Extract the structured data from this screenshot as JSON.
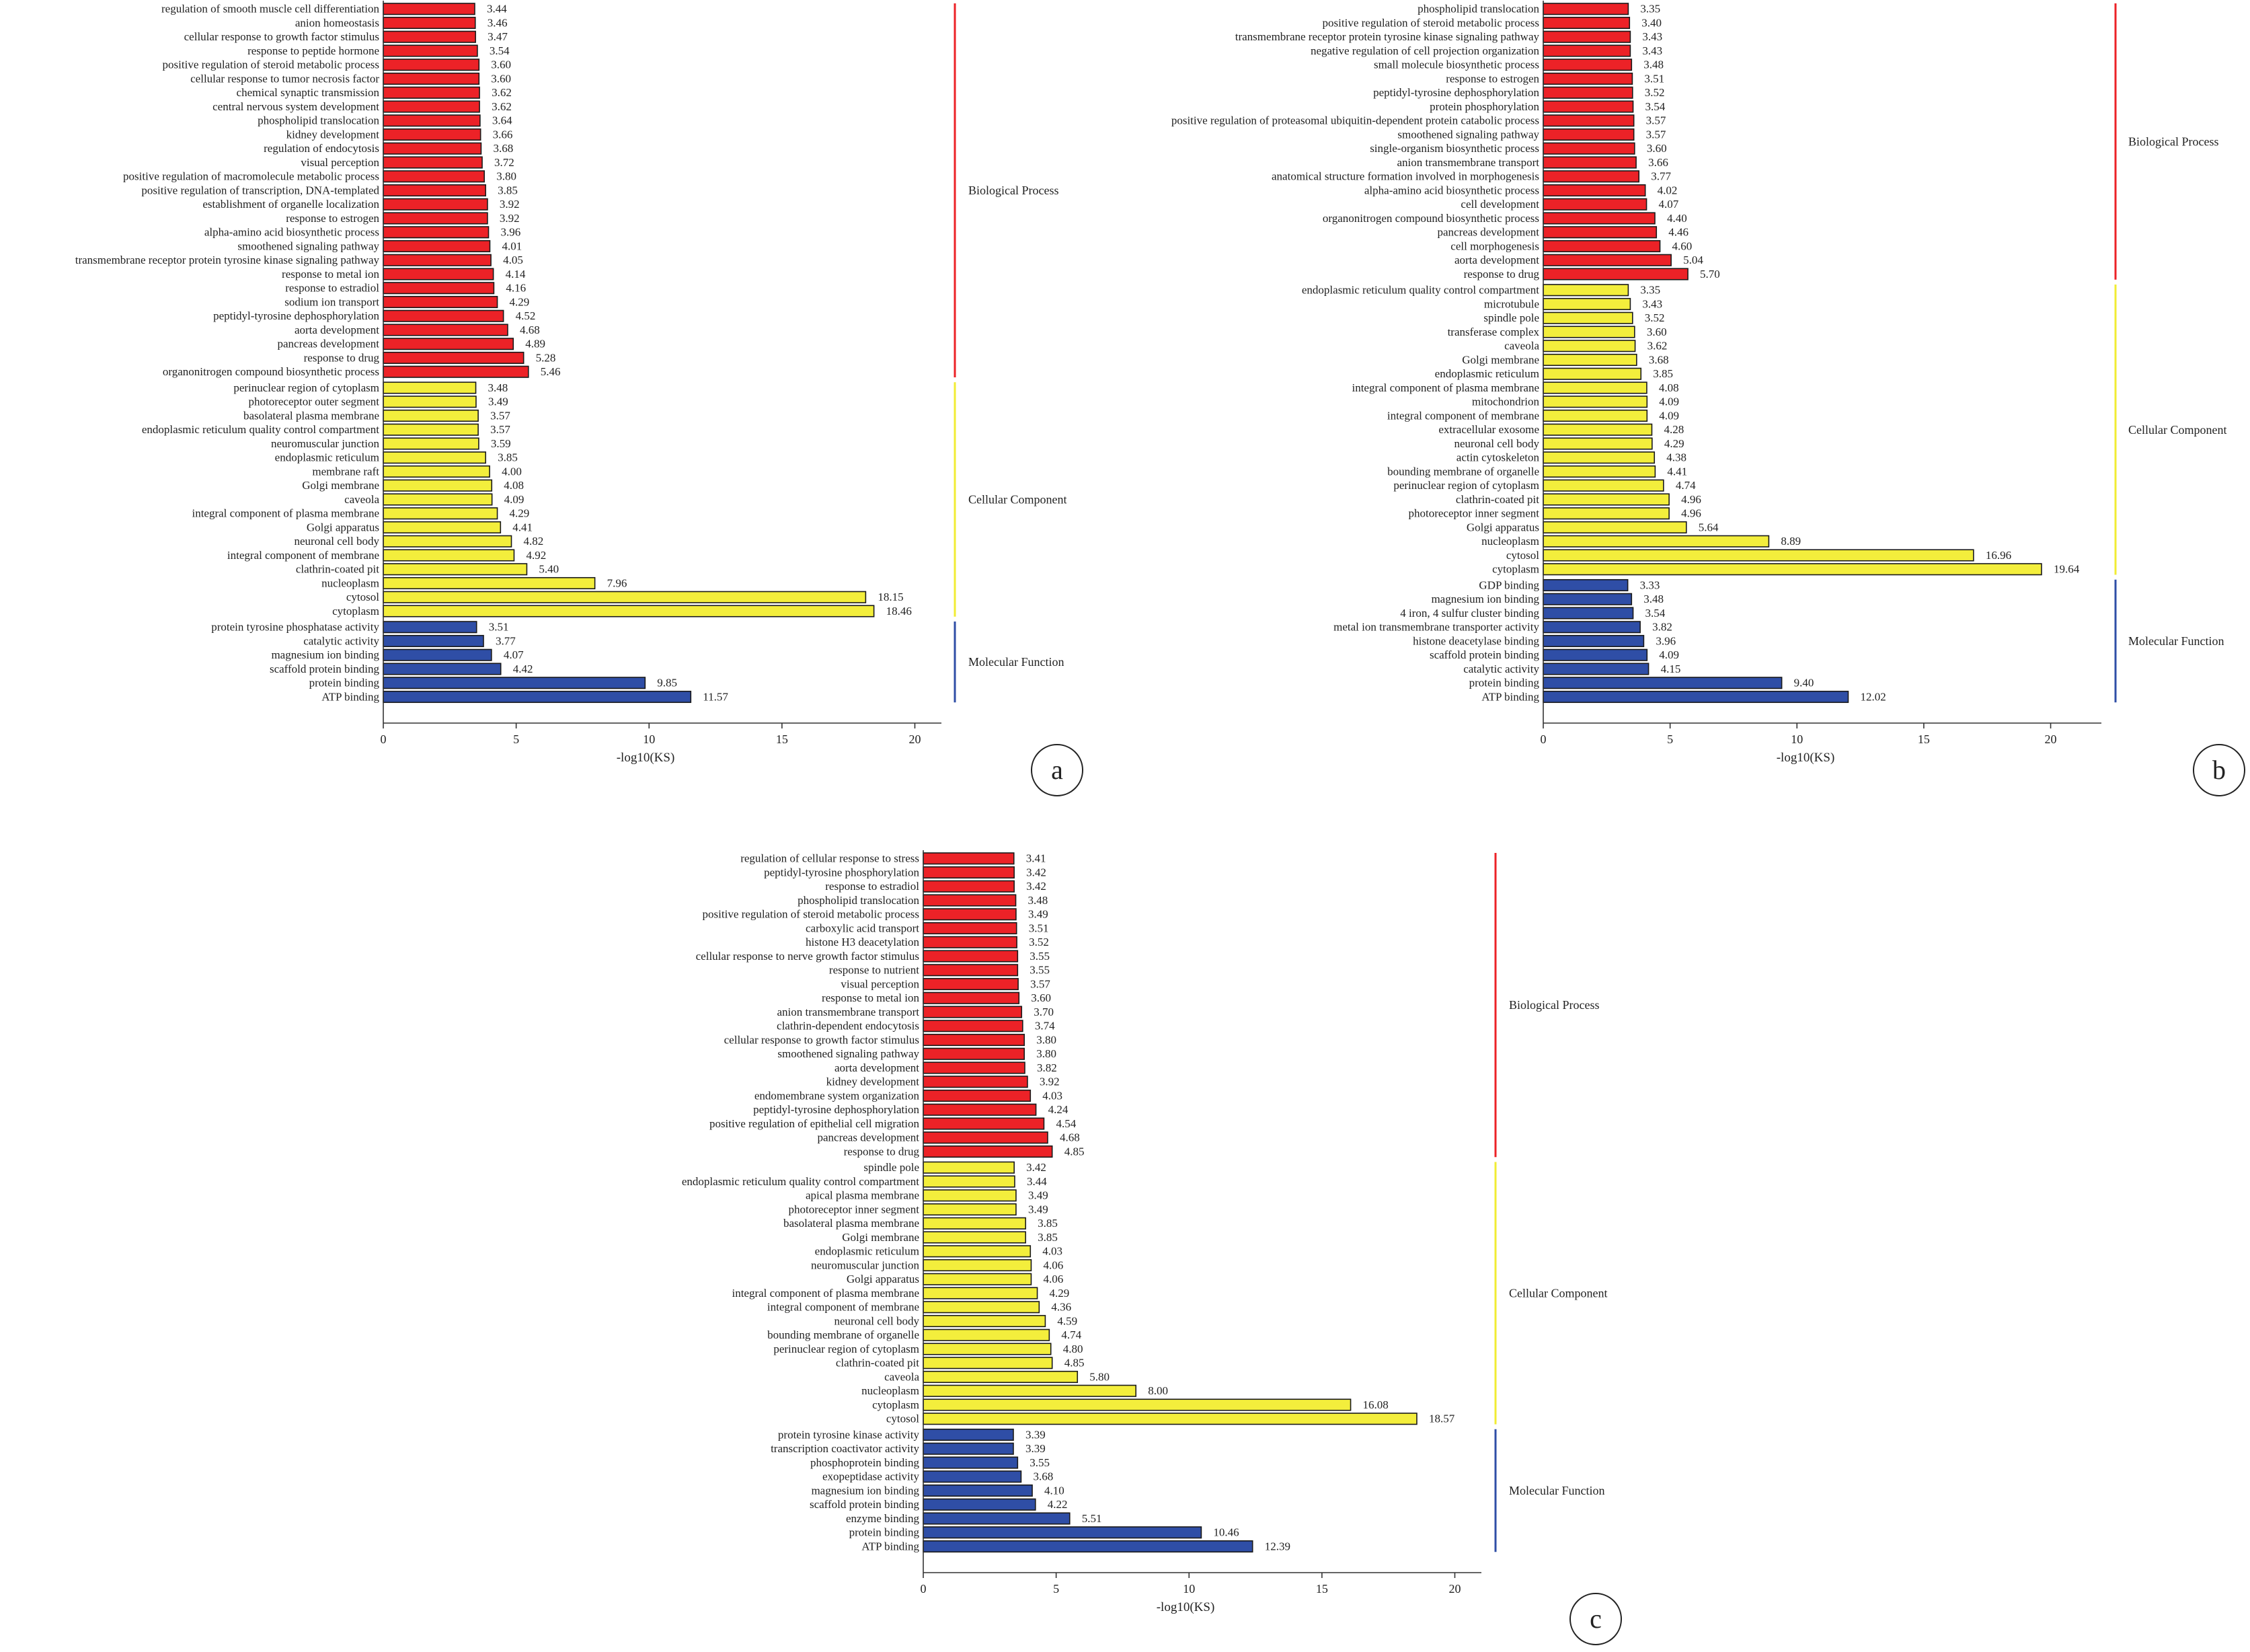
{
  "colors": {
    "bp": "#ec2227",
    "cc": "#f3ee3c",
    "mf": "#2f4ea6",
    "bar_stroke": "#1a1a1a",
    "axis": "#333333"
  },
  "chart_data": [
    {
      "type": "bar",
      "orientation": "horizontal",
      "panel_label": "a",
      "xlabel": "-log10(KS)",
      "xlim": [
        0,
        21
      ],
      "xticks": [
        0,
        5,
        10,
        15,
        20
      ],
      "groups": [
        {
          "name": "Biological Process",
          "color_key": "bp",
          "categories": [
            "regulation of smooth muscle cell differentiation",
            "anion homeostasis",
            "cellular response to growth factor stimulus",
            "response to peptide hormone",
            "positive regulation of steroid metabolic process",
            "cellular response to tumor necrosis factor",
            "chemical synaptic transmission",
            "central nervous system development",
            "phospholipid translocation",
            "kidney development",
            "regulation of endocytosis",
            "visual perception",
            "positive regulation of macromolecule metabolic process",
            "positive regulation of transcription, DNA-templated",
            "establishment of organelle localization",
            "response to estrogen",
            "alpha-amino acid biosynthetic process",
            "smoothened signaling pathway",
            "transmembrane receptor protein tyrosine kinase signaling pathway",
            "response to metal ion",
            "response to estradiol",
            "sodium ion transport",
            "peptidyl-tyrosine dephosphorylation",
            "aorta development",
            "pancreas development",
            "response to drug",
            "organonitrogen compound biosynthetic process"
          ],
          "values": [
            3.44,
            3.46,
            3.47,
            3.54,
            3.6,
            3.6,
            3.62,
            3.62,
            3.64,
            3.66,
            3.68,
            3.72,
            3.8,
            3.85,
            3.92,
            3.92,
            3.96,
            4.01,
            4.05,
            4.14,
            4.16,
            4.29,
            4.52,
            4.68,
            4.89,
            5.28,
            5.46
          ],
          "labels": [
            "3.44",
            "3.46",
            "3.47",
            "3.54",
            "3.60",
            "3.60",
            "3.62",
            "3.62",
            "3.64",
            "3.66",
            "3.68",
            "3.72",
            "3.80",
            "3.85",
            "3.92",
            "3.92",
            "3.96",
            "4.01",
            "4.05",
            "4.14",
            "4.16",
            "4.29",
            "4.52",
            "4.68",
            "4.89",
            "5.28",
            "5.46"
          ]
        },
        {
          "name": "Cellular Component",
          "color_key": "cc",
          "categories": [
            "perinuclear region of cytoplasm",
            "photoreceptor outer segment",
            "basolateral plasma membrane",
            "endoplasmic reticulum quality control compartment",
            "neuromuscular junction",
            "endoplasmic reticulum",
            "membrane raft",
            "Golgi membrane",
            "caveola",
            "integral component of plasma membrane",
            "Golgi apparatus",
            "neuronal cell body",
            "integral component of membrane",
            "clathrin-coated pit",
            "nucleoplasm",
            "cytosol",
            "cytoplasm"
          ],
          "values": [
            3.48,
            3.49,
            3.57,
            3.57,
            3.59,
            3.85,
            4.0,
            4.08,
            4.09,
            4.29,
            4.41,
            4.82,
            4.92,
            5.4,
            7.96,
            18.15,
            18.46
          ],
          "labels": [
            "3.48",
            "3.49",
            "3.57",
            "3.57",
            "3.59",
            "3.85",
            "4.00",
            "4.08",
            "4.09",
            "4.29",
            "4.41",
            "4.82",
            "4.92",
            "5.40",
            "7.96",
            "18.15",
            "18.46"
          ]
        },
        {
          "name": "Molecular Function",
          "color_key": "mf",
          "categories": [
            "protein tyrosine phosphatase activity",
            "catalytic activity",
            "magnesium ion binding",
            "scaffold protein binding",
            "protein binding",
            "ATP binding"
          ],
          "values": [
            3.51,
            3.77,
            4.07,
            4.42,
            9.85,
            11.57
          ],
          "labels": [
            "3.51",
            "3.77",
            "4.07",
            "4.42",
            "9.85",
            "11.57"
          ]
        }
      ]
    },
    {
      "type": "bar",
      "orientation": "horizontal",
      "panel_label": "b",
      "xlabel": "-log10(KS)",
      "xlim": [
        0,
        22
      ],
      "xticks": [
        0,
        5,
        10,
        15,
        20
      ],
      "groups": [
        {
          "name": "Biological Process",
          "color_key": "bp",
          "categories": [
            "phospholipid translocation",
            "positive regulation of steroid metabolic process",
            "transmembrane receptor protein tyrosine kinase signaling pathway",
            "negative regulation of cell projection organization",
            "small molecule biosynthetic process",
            "response to estrogen",
            "peptidyl-tyrosine dephosphorylation",
            "protein phosphorylation",
            "positive regulation of proteasomal ubiquitin-dependent protein catabolic process",
            "smoothened signaling pathway",
            "single-organism biosynthetic process",
            "anion transmembrane transport",
            "anatomical structure formation involved in morphogenesis",
            "alpha-amino acid biosynthetic process",
            "cell development",
            "organonitrogen compound biosynthetic process",
            "pancreas development",
            "cell morphogenesis",
            "aorta development",
            "response to drug"
          ],
          "values": [
            3.35,
            3.4,
            3.43,
            3.43,
            3.48,
            3.51,
            3.52,
            3.54,
            3.57,
            3.57,
            3.6,
            3.66,
            3.77,
            4.02,
            4.07,
            4.4,
            4.46,
            4.6,
            5.04,
            5.7
          ],
          "labels": [
            "3.35",
            "3.40",
            "3.43",
            "3.43",
            "3.48",
            "3.51",
            "3.52",
            "3.54",
            "3.57",
            "3.57",
            "3.60",
            "3.66",
            "3.77",
            "4.02",
            "4.07",
            "4.40",
            "4.46",
            "4.60",
            "5.04",
            "5.70"
          ]
        },
        {
          "name": "Cellular Component",
          "color_key": "cc",
          "categories": [
            "endoplasmic reticulum quality control compartment",
            "microtubule",
            "spindle pole",
            "transferase complex",
            "caveola",
            "Golgi membrane",
            "endoplasmic reticulum",
            "integral component of plasma membrane",
            "mitochondrion",
            "integral component of membrane",
            "extracellular exosome",
            "neuronal cell body",
            "actin cytoskeleton",
            "bounding membrane of organelle",
            "perinuclear region of cytoplasm",
            "clathrin-coated pit",
            "photoreceptor inner segment",
            "Golgi apparatus",
            "nucleoplasm",
            "cytosol",
            "cytoplasm"
          ],
          "values": [
            3.35,
            3.43,
            3.52,
            3.6,
            3.62,
            3.68,
            3.85,
            4.08,
            4.09,
            4.09,
            4.28,
            4.29,
            4.38,
            4.41,
            4.74,
            4.96,
            4.96,
            5.64,
            8.89,
            16.96,
            19.64
          ],
          "labels": [
            "3.35",
            "3.43",
            "3.52",
            "3.60",
            "3.62",
            "3.68",
            "3.85",
            "4.08",
            "4.09",
            "4.09",
            "4.28",
            "4.29",
            "4.38",
            "4.41",
            "4.74",
            "4.96",
            "4.96",
            "5.64",
            "8.89",
            "16.96",
            "19.64"
          ]
        },
        {
          "name": "Molecular Function",
          "color_key": "mf",
          "categories": [
            "GDP binding",
            "magnesium ion binding",
            "4 iron, 4 sulfur cluster binding",
            "metal ion transmembrane transporter activity",
            "histone deacetylase binding",
            "scaffold protein binding",
            "catalytic activity",
            "protein binding",
            "ATP binding"
          ],
          "values": [
            3.33,
            3.48,
            3.54,
            3.82,
            3.96,
            4.09,
            4.15,
            9.4,
            12.02
          ],
          "labels": [
            "3.33",
            "3.48",
            "3.54",
            "3.82",
            "3.96",
            "4.09",
            "4.15",
            "9.40",
            "12.02"
          ]
        }
      ]
    },
    {
      "type": "bar",
      "orientation": "horizontal",
      "panel_label": "c",
      "xlabel": "-log10(KS)",
      "xlim": [
        0,
        21
      ],
      "xticks": [
        0,
        5,
        10,
        15,
        20
      ],
      "groups": [
        {
          "name": "Biological Process",
          "color_key": "bp",
          "categories": [
            "regulation of cellular response to stress",
            "peptidyl-tyrosine phosphorylation",
            "response to estradiol",
            "phospholipid translocation",
            "positive regulation of steroid metabolic process",
            "carboxylic acid transport",
            "histone H3 deacetylation",
            "cellular response to nerve growth factor stimulus",
            "response to nutrient",
            "visual perception",
            "response to metal ion",
            "anion transmembrane transport",
            "clathrin-dependent endocytosis",
            "cellular response to growth factor stimulus",
            "smoothened signaling pathway",
            "aorta development",
            "kidney development",
            "endomembrane system organization",
            "peptidyl-tyrosine dephosphorylation",
            "positive regulation of epithelial cell migration",
            "pancreas development",
            "response to drug"
          ],
          "values": [
            3.41,
            3.42,
            3.42,
            3.48,
            3.49,
            3.51,
            3.52,
            3.55,
            3.55,
            3.57,
            3.6,
            3.7,
            3.74,
            3.8,
            3.8,
            3.82,
            3.92,
            4.03,
            4.24,
            4.54,
            4.68,
            4.85
          ],
          "labels": [
            "3.41",
            "3.42",
            "3.42",
            "3.48",
            "3.49",
            "3.51",
            "3.52",
            "3.55",
            "3.55",
            "3.57",
            "3.60",
            "3.70",
            "3.74",
            "3.80",
            "3.80",
            "3.82",
            "3.92",
            "4.03",
            "4.24",
            "4.54",
            "4.68",
            "4.85"
          ]
        },
        {
          "name": "Cellular Component",
          "color_key": "cc",
          "categories": [
            "spindle pole",
            "endoplasmic reticulum quality control compartment",
            "apical plasma membrane",
            "photoreceptor inner segment",
            "basolateral plasma membrane",
            "Golgi membrane",
            "endoplasmic reticulum",
            "neuromuscular junction",
            "Golgi apparatus",
            "integral component of plasma membrane",
            "integral component of membrane",
            "neuronal cell body",
            "bounding membrane of organelle",
            "perinuclear region of cytoplasm",
            "clathrin-coated pit",
            "caveola",
            "nucleoplasm",
            "cytoplasm",
            "cytosol"
          ],
          "values": [
            3.42,
            3.44,
            3.49,
            3.49,
            3.85,
            3.85,
            4.03,
            4.06,
            4.06,
            4.29,
            4.36,
            4.59,
            4.74,
            4.8,
            4.85,
            5.8,
            8.0,
            16.08,
            18.57
          ],
          "labels": [
            "3.42",
            "3.44",
            "3.49",
            "3.49",
            "3.85",
            "3.85",
            "4.03",
            "4.06",
            "4.06",
            "4.29",
            "4.36",
            "4.59",
            "4.74",
            "4.80",
            "4.85",
            "5.80",
            "8.00",
            "16.08",
            "18.57"
          ]
        },
        {
          "name": "Molecular Function",
          "color_key": "mf",
          "categories": [
            "protein tyrosine kinase activity",
            "transcription coactivator activity",
            "phosphoprotein binding",
            "exopeptidase activity",
            "magnesium ion binding",
            "scaffold protein binding",
            "enzyme binding",
            "protein binding",
            "ATP binding"
          ],
          "values": [
            3.39,
            3.39,
            3.55,
            3.68,
            4.1,
            4.22,
            5.51,
            10.46,
            12.39
          ],
          "labels": [
            "3.39",
            "3.39",
            "3.55",
            "3.68",
            "4.10",
            "4.22",
            "5.51",
            "10.46",
            "12.39"
          ]
        }
      ]
    }
  ]
}
